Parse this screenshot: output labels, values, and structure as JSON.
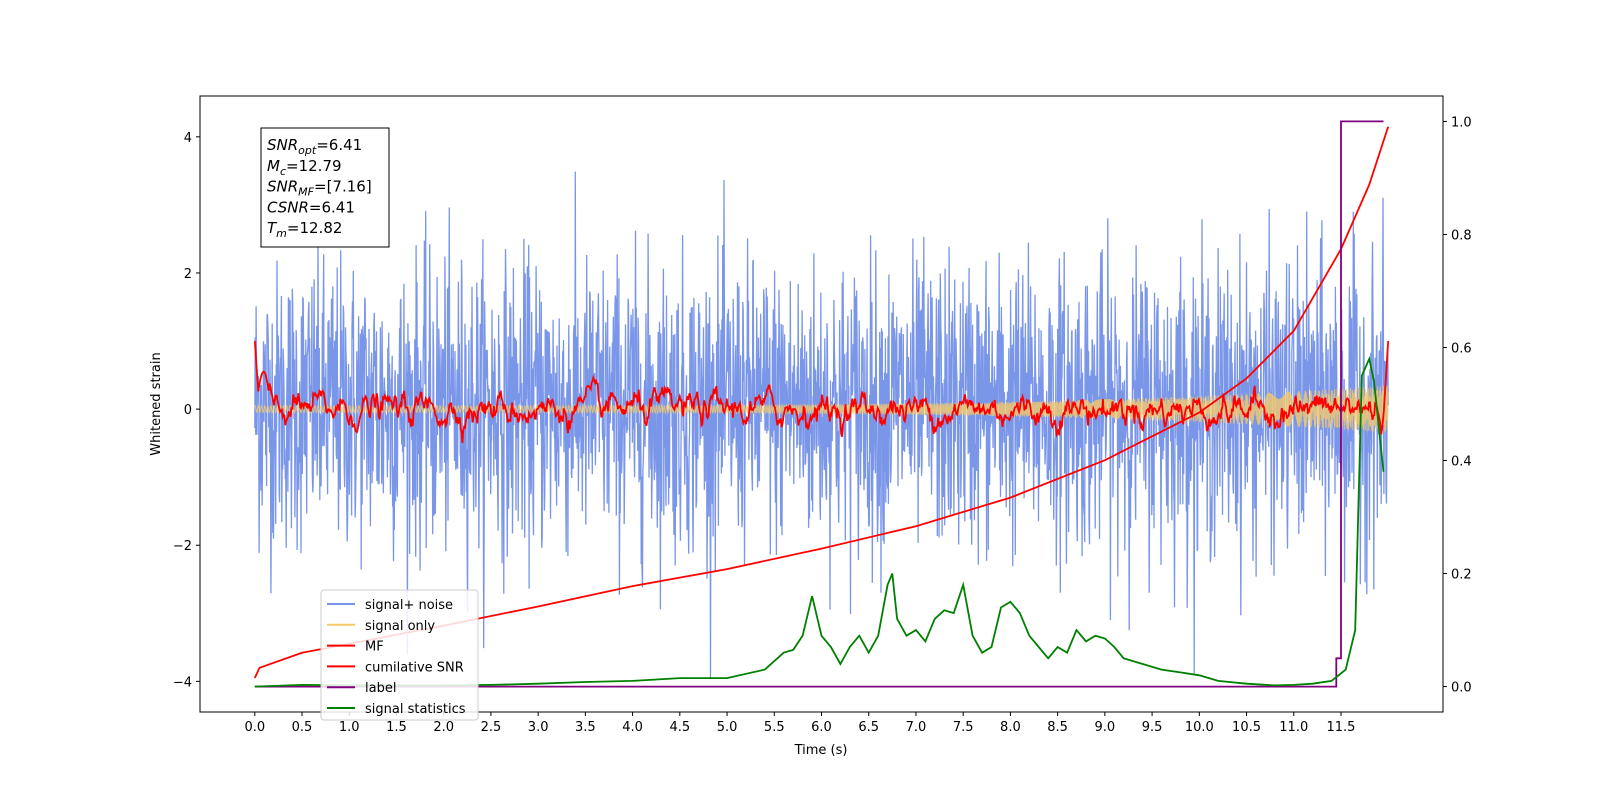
{
  "chart_data": {
    "type": "line",
    "xlabel": "Time (s)",
    "ylabel": "Whitened strain",
    "xlim": [
      -0.58,
      12.58
    ],
    "ylim": [
      -4.45,
      4.6
    ],
    "y2lim": [
      -0.045,
      1.045
    ],
    "x_ticks": [
      "0.0",
      "0.5",
      "1.0",
      "1.5",
      "2.0",
      "2.5",
      "3.0",
      "3.5",
      "4.0",
      "4.5",
      "5.0",
      "5.5",
      "6.0",
      "6.5",
      "7.0",
      "7.5",
      "8.0",
      "8.5",
      "9.0",
      "9.5",
      "10.0",
      "10.5",
      "11.0",
      "11.5"
    ],
    "y_ticks": [
      "−4",
      "−2",
      "0",
      "2",
      "4"
    ],
    "y2_ticks": [
      "0.0",
      "0.2",
      "0.4",
      "0.6",
      "0.8",
      "1.0"
    ],
    "legend_placement": "lower-left",
    "annotation": [
      {
        "sym": "SNR",
        "sub": "opt",
        "val": "=6.41"
      },
      {
        "sym": "M",
        "sub": "c",
        "val": "=12.79"
      },
      {
        "sym": "SNR",
        "sub": "MF",
        "val": "=[7.16]"
      },
      {
        "sym": "CSNR",
        "sub": "",
        "val": "=6.41"
      },
      {
        "sym": "T",
        "sub": "m",
        "val": "=12.82"
      }
    ],
    "series": [
      {
        "name": "signal+ noise",
        "color": "#7a96e8",
        "axis": "left",
        "style": "noise",
        "x_range": [
          0,
          12
        ],
        "y_range": [
          -3.95,
          3.9
        ]
      },
      {
        "name": "signal only",
        "color": "#f5c96a",
        "axis": "left",
        "style": "chirp",
        "x_range": [
          0,
          12
        ],
        "amplitude_range": [
          0.05,
          0.35
        ]
      },
      {
        "name": "MF",
        "color": "#ff0000",
        "axis": "left",
        "style": "mf",
        "x_range": [
          0,
          12
        ],
        "peaks": [
          [
            0.0,
            1.0
          ],
          [
            0.1,
            0.58
          ],
          [
            11.5,
            0.2
          ],
          [
            11.98,
            0.95
          ]
        ]
      },
      {
        "name": "cumilative SNR",
        "color": "#ff0000",
        "axis": "left",
        "x": [
          0.0,
          0.05,
          0.5,
          1.0,
          2.0,
          3.0,
          4.0,
          5.0,
          6.0,
          7.0,
          8.0,
          9.0,
          9.5,
          10.0,
          10.5,
          11.0,
          11.5,
          11.8,
          12.0
        ],
        "y": [
          -3.95,
          -3.8,
          -3.58,
          -3.45,
          -3.18,
          -2.9,
          -2.6,
          -2.35,
          -2.05,
          -1.72,
          -1.3,
          -0.75,
          -0.4,
          -0.05,
          0.45,
          1.15,
          2.35,
          3.3,
          4.15
        ]
      },
      {
        "name": "label",
        "color": "#800080",
        "axis": "right",
        "x": [
          0.0,
          11.45,
          11.45,
          11.5,
          11.5,
          11.95
        ],
        "y": [
          0.0,
          0.0,
          0.05,
          0.05,
          1.0,
          1.0
        ]
      },
      {
        "name": "signal statistics",
        "color": "#008000",
        "axis": "right",
        "x": [
          0.0,
          0.5,
          1.0,
          2.0,
          2.5,
          3.0,
          3.5,
          4.0,
          4.5,
          5.0,
          5.4,
          5.6,
          5.7,
          5.8,
          5.9,
          6.0,
          6.1,
          6.2,
          6.3,
          6.4,
          6.5,
          6.6,
          6.7,
          6.75,
          6.8,
          6.9,
          7.0,
          7.1,
          7.2,
          7.3,
          7.4,
          7.5,
          7.6,
          7.7,
          7.8,
          7.9,
          8.0,
          8.1,
          8.2,
          8.3,
          8.4,
          8.5,
          8.6,
          8.7,
          8.8,
          8.9,
          9.0,
          9.1,
          9.2,
          9.4,
          9.6,
          9.8,
          10.0,
          10.2,
          10.5,
          10.8,
          11.0,
          11.2,
          11.4,
          11.55,
          11.65,
          11.72,
          11.8,
          11.85,
          11.95
        ],
        "y": [
          0.0,
          0.003,
          0.002,
          0.002,
          0.003,
          0.005,
          0.008,
          0.01,
          0.015,
          0.015,
          0.03,
          0.06,
          0.065,
          0.09,
          0.16,
          0.09,
          0.07,
          0.04,
          0.07,
          0.09,
          0.06,
          0.09,
          0.18,
          0.2,
          0.12,
          0.09,
          0.1,
          0.08,
          0.12,
          0.135,
          0.13,
          0.18,
          0.09,
          0.06,
          0.07,
          0.14,
          0.15,
          0.13,
          0.09,
          0.07,
          0.05,
          0.07,
          0.06,
          0.1,
          0.08,
          0.09,
          0.085,
          0.07,
          0.05,
          0.04,
          0.03,
          0.025,
          0.02,
          0.01,
          0.005,
          0.002,
          0.003,
          0.005,
          0.01,
          0.03,
          0.1,
          0.55,
          0.58,
          0.54,
          0.38
        ]
      }
    ]
  }
}
